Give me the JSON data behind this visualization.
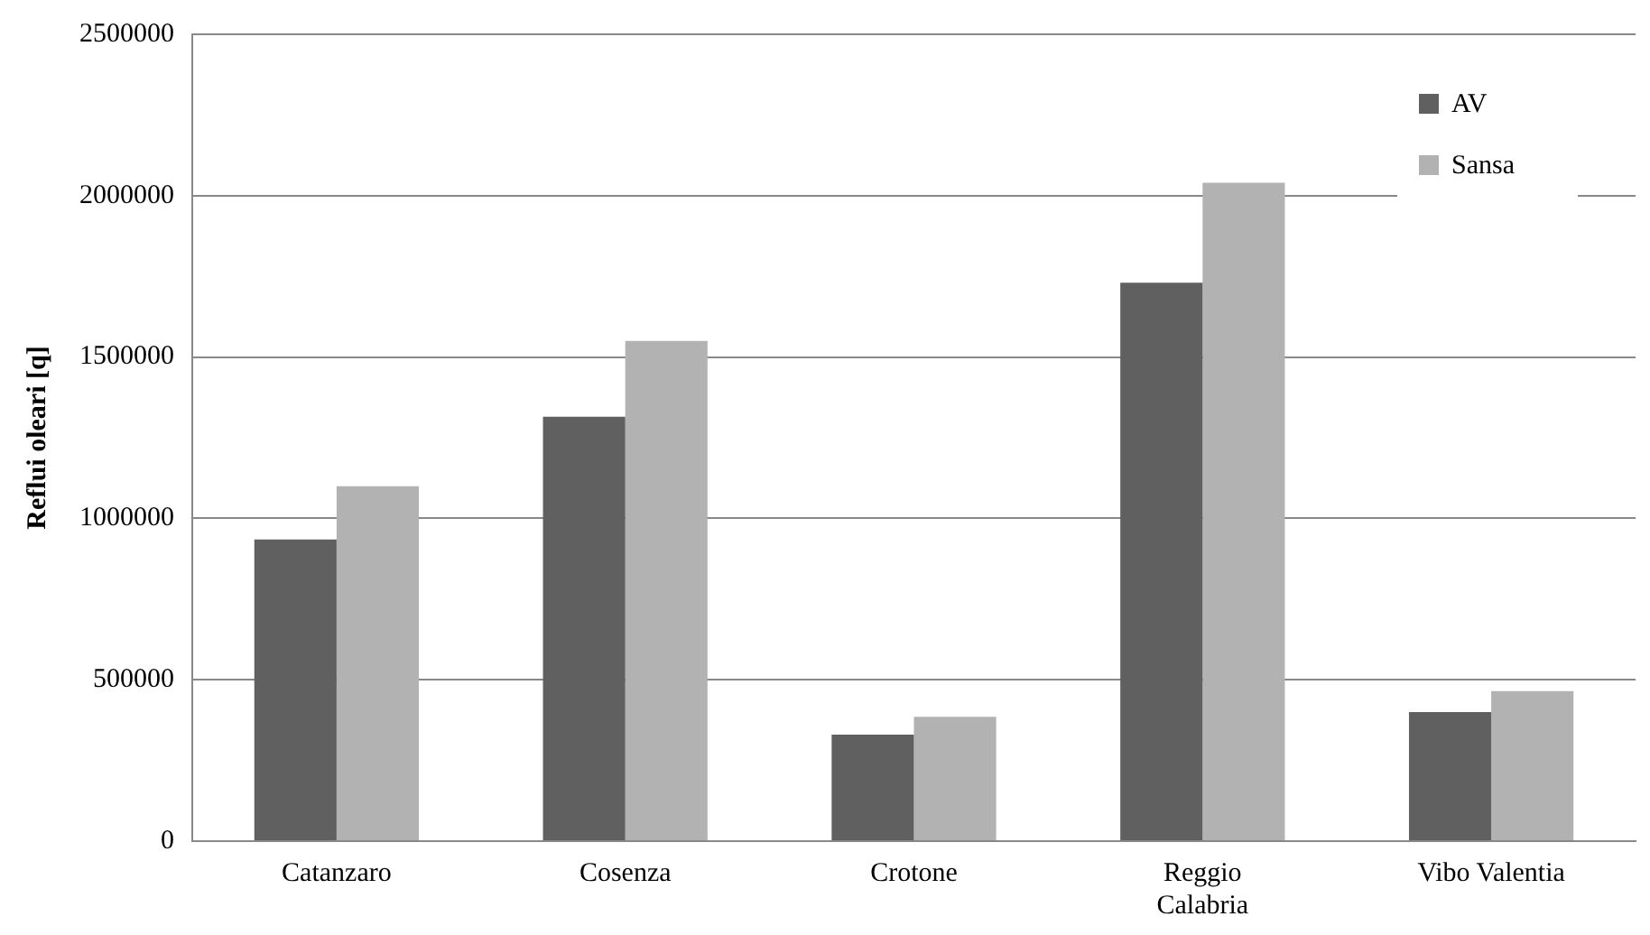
{
  "chart_data": {
    "type": "bar",
    "ylabel": "Reflui oleari [q]",
    "categories": [
      "Catanzaro",
      "Cosenza",
      "Crotone",
      "Reggio Calabria",
      "Vibo Valentia"
    ],
    "series": [
      {
        "name": "AV",
        "color": "#606060",
        "values": [
          935000,
          1315000,
          330000,
          1730000,
          400000
        ]
      },
      {
        "name": "Sansa",
        "color": "#b2b2b2",
        "values": [
          1100000,
          1550000,
          385000,
          2040000,
          465000
        ]
      }
    ],
    "ylim": [
      0,
      2500000
    ],
    "yticks": [
      0,
      500000,
      1000000,
      1500000,
      2000000,
      2500000
    ],
    "grid": "y",
    "legend": "top right"
  }
}
